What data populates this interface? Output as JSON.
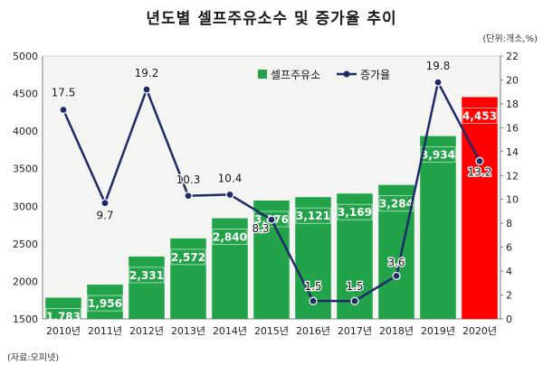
{
  "title": "년도별 셀프주유소수 및 증가율 추이",
  "unit_label": "(단위:개소,%)",
  "source_label": "(자료:오피넷)",
  "colors": {
    "bar": "#22a34a",
    "bar_highlight": "#ff0000",
    "line": "#1f2a66",
    "point_fill": "#1f2a66"
  },
  "chart_data": {
    "type": "bar",
    "categories": [
      "2010년",
      "2011년",
      "2012년",
      "2013년",
      "2014년",
      "2015년",
      "2016년",
      "2017년",
      "2018년",
      "2019년",
      "2020년"
    ],
    "series": [
      {
        "name": "셀프주유소",
        "type": "bar",
        "axis": "left",
        "values": [
          1783,
          1956,
          2331,
          2572,
          2840,
          3076,
          3121,
          3169,
          3284,
          3934,
          4453
        ],
        "labels": [
          "1,783",
          "1,956",
          "2,331",
          "2,572",
          "2,840",
          "3,076",
          "3,121",
          "3,169",
          "3,284",
          "3,934",
          "4,453"
        ]
      },
      {
        "name": "증가율",
        "type": "line",
        "axis": "right",
        "values": [
          17.5,
          9.7,
          19.2,
          10.3,
          10.4,
          8.3,
          1.5,
          1.5,
          3.6,
          19.8,
          13.2
        ],
        "labels": [
          "17.5",
          "9.7",
          "19.2",
          "10.3",
          "10.4",
          "8.3",
          "1.5",
          "1.5",
          "3.6",
          "19.8",
          "13.2"
        ]
      }
    ],
    "left_axis": {
      "min": 1500,
      "max": 5000,
      "ticks": [
        1500,
        2000,
        2500,
        3000,
        3500,
        4000,
        4500,
        5000
      ]
    },
    "right_axis": {
      "min": 0,
      "max": 22,
      "ticks": [
        0,
        2,
        4,
        6,
        8,
        10,
        12,
        14,
        16,
        18,
        20,
        22
      ]
    },
    "highlight_index": 10,
    "legend_position": "top-center",
    "grid": false
  }
}
